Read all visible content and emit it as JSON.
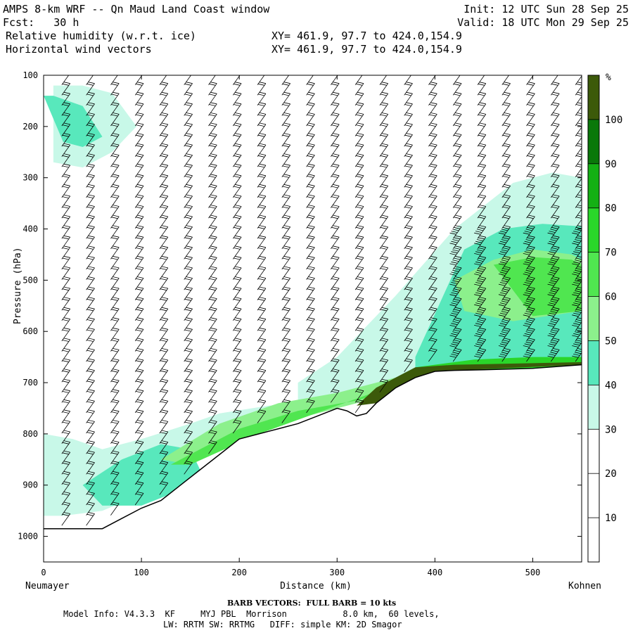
{
  "header": {
    "title": "AMPS 8-km WRF -- Qn Maud Land Coast window",
    "fcst": "Fcst:   30 h",
    "init": "Init: 12 UTC Sun 28 Sep 25",
    "valid": "Valid: 18 UTC Mon 29 Sep 25",
    "field1": "Relative humidity (w.r.t. ice)",
    "field2": "Horizontal wind vectors",
    "xy1": "XY= 461.9, 97.7 to 424.0,154.9",
    "xy2": "XY= 461.9, 97.7 to 424.0,154.9"
  },
  "chart_data": {
    "type": "heatmap",
    "title": "Relative humidity (w.r.t. ice) cross-section with horizontal wind vectors",
    "xlabel": "Distance (km)",
    "ylabel": "Pressure (hPa)",
    "xlim": [
      0,
      550
    ],
    "ylim": [
      1050,
      100
    ],
    "x_ticks": [
      0,
      100,
      200,
      300,
      400,
      500
    ],
    "y_ticks": [
      100,
      200,
      300,
      400,
      500,
      600,
      700,
      800,
      900,
      1000
    ],
    "left_endpoint": "Neumayer",
    "right_endpoint": "Kohnen",
    "colorbar": {
      "unit": "%",
      "ticks": [
        10,
        20,
        30,
        40,
        50,
        60,
        70,
        80,
        90,
        100
      ],
      "levels": [
        0,
        30,
        40,
        50,
        60,
        70,
        80,
        90,
        100
      ],
      "colors": [
        "#ffffff",
        "#c8f8e8",
        "#58e8bc",
        "#8cf08c",
        "#50e650",
        "#2ad62a",
        "#14b014",
        "#0a780a",
        "#3c5a0a"
      ]
    },
    "terrain_surface_hpa": {
      "x": [
        0,
        20,
        40,
        60,
        80,
        100,
        120,
        140,
        160,
        180,
        200,
        220,
        240,
        260,
        280,
        300,
        310,
        320,
        330,
        340,
        350,
        360,
        380,
        400,
        420,
        450,
        500,
        550
      ],
      "p": [
        985,
        985,
        985,
        985,
        965,
        945,
        930,
        900,
        870,
        840,
        810,
        800,
        790,
        780,
        765,
        750,
        755,
        765,
        760,
        740,
        725,
        710,
        690,
        678,
        676,
        675,
        672,
        665
      ]
    },
    "rh_regions": [
      {
        "level": 30,
        "x": [
          0,
          10,
          10,
          40,
          70,
          95,
          70,
          40,
          0
        ],
        "p": [
          120,
          120,
          270,
          280,
          250,
          200,
          135,
          120,
          120
        ]
      },
      {
        "level": 30,
        "x": [
          0,
          30,
          60,
          100,
          150,
          180,
          230,
          260,
          260,
          300,
          360,
          420,
          480,
          520,
          550,
          550,
          450,
          380,
          320,
          260,
          200,
          160,
          110,
          60,
          20,
          0
        ],
        "p": [
          800,
          810,
          830,
          810,
          780,
          760,
          745,
          740,
          700,
          650,
          530,
          400,
          310,
          290,
          300,
          660,
          670,
          690,
          720,
          740,
          790,
          850,
          910,
          950,
          960,
          960
        ]
      },
      {
        "level": 40,
        "x": [
          0,
          10,
          40,
          60,
          40,
          20,
          0
        ],
        "p": [
          140,
          140,
          160,
          220,
          240,
          230,
          140
        ]
      },
      {
        "level": 40,
        "x": [
          40,
          80,
          120,
          150,
          160,
          140,
          100,
          60,
          40
        ],
        "p": [
          900,
          850,
          820,
          830,
          870,
          910,
          940,
          940,
          900
        ]
      },
      {
        "level": 40,
        "x": [
          380,
          430,
          470,
          510,
          550,
          550,
          440,
          380,
          380
        ],
        "p": [
          650,
          440,
          400,
          390,
          395,
          660,
          670,
          680,
          650
        ]
      },
      {
        "level": 50,
        "x": [
          120,
          180,
          240,
          300,
          340,
          380,
          380,
          320,
          260,
          200,
          150,
          120
        ],
        "p": [
          850,
          780,
          740,
          720,
          700,
          680,
          700,
          740,
          770,
          810,
          860,
          850
        ]
      },
      {
        "level": 50,
        "x": [
          420,
          460,
          500,
          540,
          550,
          550,
          480,
          430,
          420
        ],
        "p": [
          500,
          460,
          440,
          450,
          460,
          560,
          580,
          560,
          500
        ]
      },
      {
        "level": 60,
        "x": [
          460,
          500,
          540,
          550,
          550,
          500,
          460
        ],
        "p": [
          470,
          455,
          460,
          470,
          560,
          570,
          470
        ]
      },
      {
        "level": 60,
        "x": [
          130,
          200,
          260,
          320,
          380,
          420,
          460,
          550,
          550,
          380,
          300,
          220,
          150,
          130
        ],
        "p": [
          860,
          790,
          755,
          735,
          700,
          660,
          655,
          650,
          665,
          690,
          745,
          800,
          860,
          860
        ]
      },
      {
        "level": 70,
        "x": [
          380,
          440,
          500,
          550,
          550,
          380
        ],
        "p": [
          670,
          655,
          650,
          650,
          665,
          690
        ]
      },
      {
        "level": 100,
        "x": [
          320,
          340,
          360,
          380,
          420,
          550,
          550,
          420,
          380,
          360,
          340,
          320
        ],
        "p": [
          745,
          710,
          690,
          670,
          665,
          660,
          665,
          676,
          690,
          710,
          740,
          745
        ]
      }
    ],
    "wind_columns_km": [
      20,
      45,
      70,
      95,
      120,
      145,
      170,
      195,
      220,
      245,
      270,
      295,
      320,
      345,
      370,
      395,
      420,
      445,
      470,
      495,
      520,
      545
    ]
  },
  "footer": {
    "barb": "BARB VECTORS:  FULL BARB = 10 kts",
    "model1": "Model Info: V4.3.3  KF     MYJ PBL  Morrison           8.0 km,  60 levels,",
    "model2": "LW: RRTM SW: RRTMG   DIFF: simple KM: 2D Smagor"
  }
}
